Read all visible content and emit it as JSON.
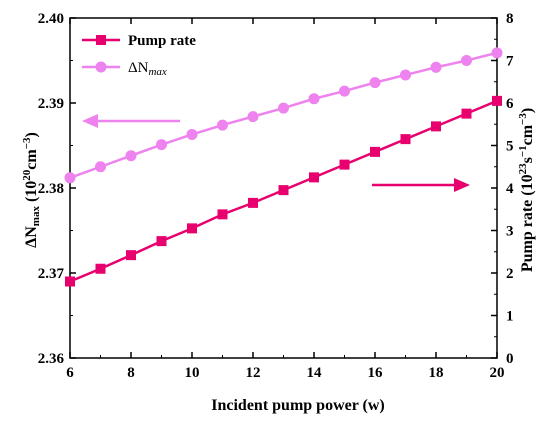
{
  "chart_data": {
    "type": "line",
    "x": [
      6,
      7,
      8,
      9,
      10,
      11,
      12,
      13,
      14,
      15,
      16,
      17,
      18,
      19,
      20
    ],
    "xlabel": "Incident pump power (w)",
    "xlim": [
      6,
      20
    ],
    "x_ticks": [
      "6",
      "8",
      "10",
      "12",
      "14",
      "16",
      "18",
      "20"
    ],
    "y_left": {
      "label_parts": [
        "ΔN",
        "max",
        " (10",
        "20",
        "cm",
        "−3",
        ")"
      ],
      "lim": [
        2.36,
        2.4
      ],
      "ticks": [
        "2.36",
        "2.37",
        "2.38",
        "2.39",
        "2.40"
      ]
    },
    "y_right": {
      "label_parts": [
        "Pump rate (10",
        "23",
        "s",
        "−1",
        "cm",
        "−3",
        ")"
      ],
      "lim": [
        0,
        8
      ],
      "ticks": [
        "0",
        "1",
        "2",
        "3",
        "4",
        "5",
        "6",
        "7",
        "8"
      ]
    },
    "series": [
      {
        "name": "Pump rate",
        "axis": "right",
        "marker": "square",
        "color": "#e8006e",
        "values": [
          1.8,
          2.1,
          2.42,
          2.75,
          3.05,
          3.38,
          3.65,
          3.95,
          4.25,
          4.55,
          4.85,
          5.15,
          5.45,
          5.75,
          6.05
        ]
      },
      {
        "name_parts": [
          "ΔN",
          "max"
        ],
        "axis": "left",
        "marker": "circle",
        "color": "#ee82ee",
        "values": [
          2.3812,
          2.3825,
          2.3838,
          2.3851,
          2.3863,
          2.3874,
          2.3884,
          2.3894,
          2.3905,
          2.3914,
          2.3924,
          2.3933,
          2.3942,
          2.395,
          2.3959
        ]
      }
    ],
    "legend": "top-left",
    "grid": false,
    "annotations": [
      {
        "type": "arrow",
        "direction": "left",
        "color": "#ee82ee",
        "refers_to": "left-axis"
      },
      {
        "type": "arrow",
        "direction": "right",
        "color": "#e8006e",
        "refers_to": "right-axis"
      }
    ]
  }
}
